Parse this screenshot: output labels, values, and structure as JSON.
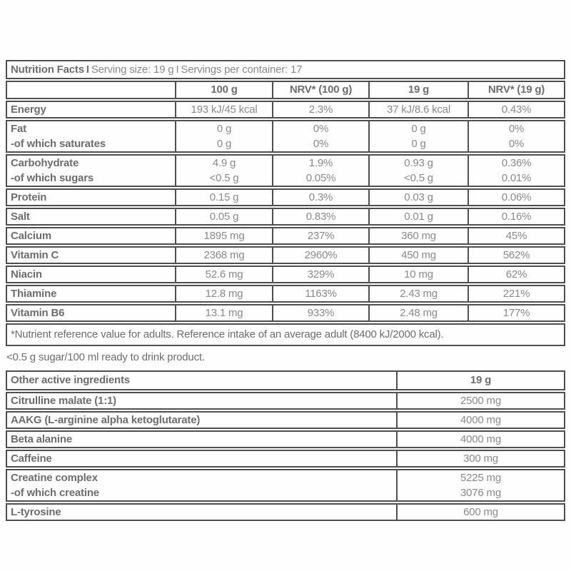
{
  "colors": {
    "border": "#4f4f4f",
    "label_text": "#6e6e6e",
    "value_text": "#8a8a8a",
    "background": "#fefefe"
  },
  "nutrition_facts": {
    "title": "Nutrition Facts",
    "separator": "I",
    "serving_size": "Serving size: 19 g",
    "servings_per_container": "Servings per container: 17",
    "columns": [
      "",
      "100 g",
      "NRV* (100 g)",
      "19 g",
      "NRV* (19 g)"
    ],
    "row_groups": [
      {
        "rows": [
          {
            "label": "Energy",
            "values": [
              "193 kJ/45 kcal",
              "2.3%",
              "37 kJ/8.6 kcal",
              "0.43%"
            ]
          }
        ]
      },
      {
        "rows": [
          {
            "label": "Fat",
            "values": [
              "0 g",
              "0%",
              "0 g",
              "0%"
            ]
          },
          {
            "label": "-of which saturates",
            "values": [
              "0 g",
              "0%",
              "0 g",
              "0%"
            ]
          }
        ]
      },
      {
        "rows": [
          {
            "label": "Carbohydrate",
            "values": [
              "4.9 g",
              "1.9%",
              "0.93 g",
              "0.36%"
            ]
          },
          {
            "label": "-of which sugars",
            "values": [
              "<0.5 g",
              "0.05%",
              "<0.5 g",
              "0.01%"
            ]
          }
        ]
      },
      {
        "rows": [
          {
            "label": "Protein",
            "values": [
              "0.15 g",
              "0.3%",
              "0.03 g",
              "0.06%"
            ]
          }
        ]
      },
      {
        "rows": [
          {
            "label": "Salt",
            "values": [
              "0.05 g",
              "0.83%",
              "0.01 g",
              "0.16%"
            ]
          }
        ]
      },
      {
        "rows": [
          {
            "label": "Calcium",
            "values": [
              "1895 mg",
              "237%",
              "360 mg",
              "45%"
            ]
          }
        ]
      },
      {
        "rows": [
          {
            "label": "Vitamin C",
            "values": [
              "2368 mg",
              "2960%",
              "450 mg",
              "562%"
            ]
          }
        ]
      },
      {
        "rows": [
          {
            "label": "Niacin",
            "values": [
              "52.6 mg",
              "329%",
              "10 mg",
              "62%"
            ]
          }
        ]
      },
      {
        "rows": [
          {
            "label": "Thiamine",
            "values": [
              "12.8 mg",
              "1163%",
              "2.43 mg",
              "221%"
            ]
          }
        ]
      },
      {
        "rows": [
          {
            "label": "Vitamin B6",
            "values": [
              "13.1 mg",
              "933%",
              "2.48 mg",
              "177%"
            ]
          }
        ]
      }
    ],
    "footnote": "*Nutrient reference value for adults. Reference intake of an average adult (8400 kJ/2000 kcal)."
  },
  "note": "<0.5 g sugar/100 ml ready to drink product.",
  "ingredients": {
    "header_label": "Other active ingredients",
    "header_value": "19 g",
    "row_groups": [
      {
        "rows": [
          {
            "label": "Citrulline malate (1:1)",
            "values": [
              "2500 mg"
            ]
          }
        ]
      },
      {
        "rows": [
          {
            "label": "AAKG (L-arginine alpha ketoglutarate)",
            "values": [
              "4000 mg"
            ]
          }
        ]
      },
      {
        "rows": [
          {
            "label": "Beta alanine",
            "values": [
              "4000 mg"
            ]
          }
        ]
      },
      {
        "rows": [
          {
            "label": "Caffeine",
            "values": [
              "300 mg"
            ]
          }
        ]
      },
      {
        "rows": [
          {
            "label": "Creatine complex",
            "values": [
              "5225 mg"
            ]
          },
          {
            "label": "-of which creatine",
            "values": [
              "3076 mg"
            ]
          }
        ]
      },
      {
        "rows": [
          {
            "label": "L-tyrosine",
            "values": [
              "600 mg"
            ]
          }
        ]
      }
    ]
  }
}
